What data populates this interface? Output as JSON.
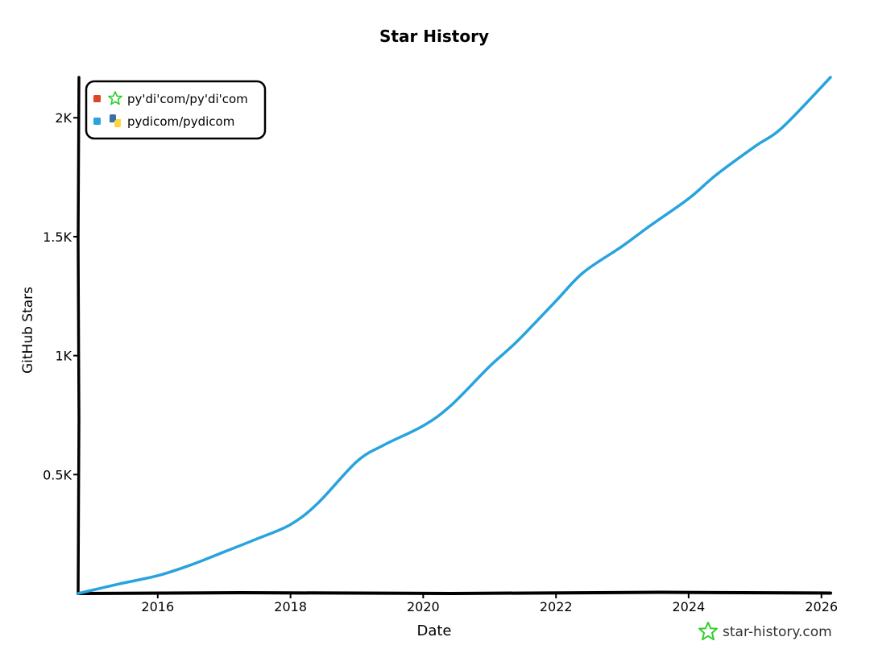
{
  "chart_data": {
    "type": "line",
    "title": "Star History",
    "xlabel": "Date",
    "ylabel": "GitHub Stars",
    "xlim": [
      "2014-10-20",
      "2026-02-20"
    ],
    "ylim": [
      0,
      2170
    ],
    "x_ticks": [
      "2016",
      "2018",
      "2020",
      "2022",
      "2024",
      "2026"
    ],
    "y_ticks": [
      {
        "value": 500,
        "label": "0.5K"
      },
      {
        "value": 1000,
        "label": "1K"
      },
      {
        "value": 1500,
        "label": "1.5K"
      },
      {
        "value": 2000,
        "label": "2K"
      }
    ],
    "grid": false,
    "legend_position": "top-left",
    "series": [
      {
        "name": "py'di'com/py'di'com",
        "color": "#dd4528",
        "icon": "star-outline-icon",
        "points": []
      },
      {
        "name": "pydicom/pydicom",
        "color": "#28a3dd",
        "icon": "python-logo-icon",
        "points": [
          [
            "2014-10-20",
            0
          ],
          [
            "2015-06-01",
            40
          ],
          [
            "2016-01-01",
            75
          ],
          [
            "2016-07-01",
            120
          ],
          [
            "2017-01-01",
            175
          ],
          [
            "2017-07-01",
            230
          ],
          [
            "2018-01-01",
            290
          ],
          [
            "2018-06-01",
            380
          ],
          [
            "2019-01-01",
            555
          ],
          [
            "2019-06-01",
            625
          ],
          [
            "2020-01-01",
            705
          ],
          [
            "2020-06-01",
            790
          ],
          [
            "2021-01-01",
            955
          ],
          [
            "2021-06-01",
            1060
          ],
          [
            "2022-01-01",
            1230
          ],
          [
            "2022-06-01",
            1350
          ],
          [
            "2023-01-01",
            1460
          ],
          [
            "2023-06-01",
            1545
          ],
          [
            "2024-01-01",
            1660
          ],
          [
            "2024-06-01",
            1760
          ],
          [
            "2025-01-01",
            1880
          ],
          [
            "2025-06-01",
            1960
          ],
          [
            "2026-02-20",
            2170
          ]
        ]
      }
    ]
  },
  "watermark": {
    "text": "star-history.com",
    "icon": "star-history-logo-icon",
    "color": "#2ccf2c"
  }
}
